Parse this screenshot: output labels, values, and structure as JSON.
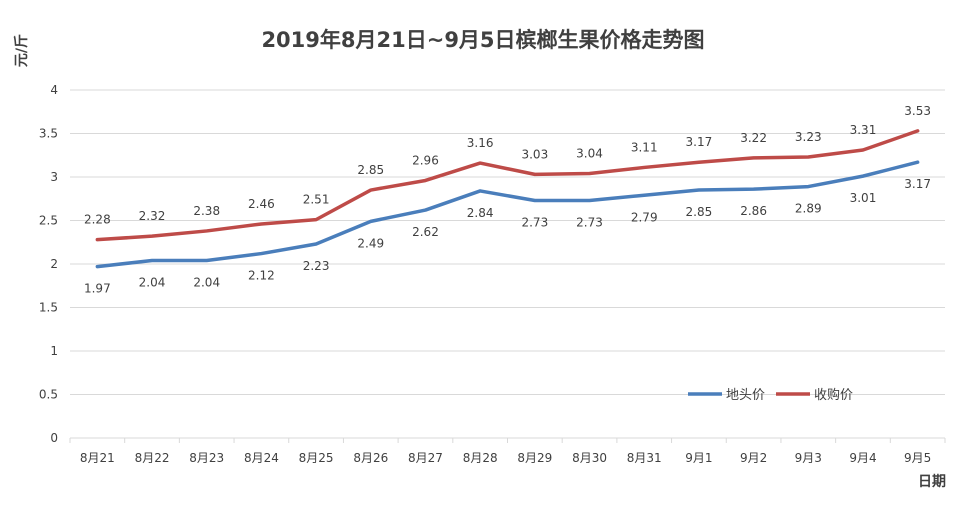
{
  "chart_data": {
    "type": "line",
    "title": "2019年8月21日~9月5日槟榔生果价格走势图",
    "xlabel": "日期",
    "ylabel": "元/斤",
    "ylim": [
      0,
      4
    ],
    "yticks": [
      "0",
      "0.5",
      "1",
      "1.5",
      "2",
      "2.5",
      "3",
      "3.5",
      "4"
    ],
    "grid": true,
    "legend_position": "bottom-right",
    "categories": [
      "8月21",
      "8月22",
      "8月23",
      "8月24",
      "8月25",
      "8月26",
      "8月27",
      "8月28",
      "8月29",
      "8月30",
      "8月31",
      "9月1",
      "9月2",
      "9月3",
      "9月4",
      "9月5"
    ],
    "series": [
      {
        "name": "地头价",
        "color": "#4a7ebb",
        "values": [
          1.97,
          2.04,
          2.04,
          2.12,
          2.23,
          2.49,
          2.62,
          2.84,
          2.73,
          2.73,
          2.79,
          2.85,
          2.86,
          2.89,
          3.01,
          3.17
        ],
        "labels": [
          "1.97",
          "2.04",
          "2.04",
          "2.12",
          "2.23",
          "2.49",
          "2.62",
          "2.84",
          "2.73",
          "2.73",
          "2.79",
          "2.85",
          "2.86",
          "2.89",
          "3.01",
          "3.17"
        ]
      },
      {
        "name": "收购价",
        "color": "#be4b48",
        "values": [
          2.28,
          2.32,
          2.38,
          2.46,
          2.51,
          2.85,
          2.96,
          3.16,
          3.03,
          3.04,
          3.11,
          3.17,
          3.22,
          3.23,
          3.31,
          3.53
        ],
        "labels": [
          "2.28",
          "2.32",
          "2.38",
          "2.46",
          "2.51",
          "2.85",
          "2.96",
          "3.16",
          "3.03",
          "3.04",
          "3.11",
          "3.17",
          "3.22",
          "3.23",
          "3.31",
          "3.53"
        ]
      }
    ]
  },
  "colors": {
    "grid": "#d9d9d9",
    "text": "#404040"
  }
}
